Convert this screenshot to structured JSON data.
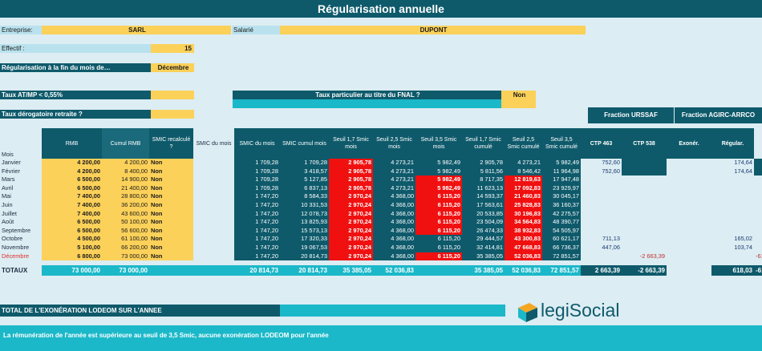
{
  "title": "Régularisation annuelle",
  "header": {
    "entreprise_label": "Entreprise:",
    "entreprise_value": "SARL",
    "salarie_label": "Salarié",
    "salarie_value": "DUPONT",
    "effectif_label": "Effectif :",
    "effectif_value": "15",
    "regul_label": "Régularisation à la fin du mois de…",
    "regul_value": "Décembre",
    "taux_atmp_label": "Taux AT/MP < 0,55%",
    "taux_fnal_label": "Taux particulier au titre du FNAL ?",
    "taux_fnal_value": "Non",
    "taux_derog_label": "Taux dérogatoire retraite ?"
  },
  "fractions": {
    "urssaf": "Fraction URSSAF",
    "agirc": "Fraction AGIRC-ARRCO"
  },
  "columns": [
    "RMB",
    "Cumul RMB",
    "SMIC recalculé ?",
    "SMIC du mois",
    "SMIC du mois",
    "SMIC cumul mois",
    "Seuil 1,7 Smic mois",
    "Seuil 2,5 Smic mois",
    "Seuil 3,5 Smic mois",
    "Seuil 1,7 Smic cumulé",
    "Seuil 2,5 Smic cumulé",
    "Seuil 3,5 Smic cumulé",
    "CTP 463",
    "CTP 538",
    "Exonér.",
    "Régular."
  ],
  "mois_label": "Mois",
  "rows": [
    {
      "m": "Janvier",
      "rmb": "4 200,00",
      "cum": "4 200,00",
      "rec": "Non",
      "sm": "1 709,28",
      "sc": "1 709,28",
      "s17": "2 905,78",
      "s25": "4 273,21",
      "s35": "5 982,49",
      "c17": "2 905,78",
      "c25": "4 273,21",
      "c35": "5 982,49",
      "ctp463": "752,60",
      "ctp538": "",
      "exo": "174,64",
      "reg": ""
    },
    {
      "m": "Février",
      "rmb": "4 200,00",
      "cum": "8 400,00",
      "rec": "Non",
      "sm": "1 709,28",
      "sc": "3 418,57",
      "s17": "2 905,78",
      "s25": "4 273,21",
      "s35": "5 982,49",
      "c17": "5 811,56",
      "c25": "8 546,42",
      "c35": "11 964,98",
      "ctp463": "752,60",
      "ctp538": "",
      "exo": "174,64",
      "reg": ""
    },
    {
      "m": "Mars",
      "rmb": "6 500,00",
      "cum": "14 900,00",
      "rec": "Non",
      "sm": "1 709,28",
      "sc": "5 127,85",
      "s17": "2 905,78",
      "s25": "4 273,21",
      "s35": "5 982,49",
      "c17": "8 717,35",
      "c25": "12 819,63",
      "c35": "17 947,48",
      "ctp463": "",
      "ctp538": "",
      "exo": "",
      "reg": ""
    },
    {
      "m": "Avril",
      "rmb": "6 500,00",
      "cum": "21 400,00",
      "rec": "Non",
      "sm": "1 709,28",
      "sc": "6 837,13",
      "s17": "2 905,78",
      "s25": "4 273,21",
      "s35": "5 982,49",
      "c17": "11 623,13",
      "c25": "17 092,83",
      "c35": "23 929,97",
      "ctp463": "",
      "ctp538": "",
      "exo": "",
      "reg": ""
    },
    {
      "m": "Mai",
      "rmb": "7 400,00",
      "cum": "28 800,00",
      "rec": "Non",
      "sm": "1 747,20",
      "sc": "8 584,33",
      "s17": "2 970,24",
      "s25": "4 368,00",
      "s35": "6 115,20",
      "c17": "14 593,37",
      "c25": "21 460,83",
      "c35": "30 045,17",
      "ctp463": "",
      "ctp538": "",
      "exo": "",
      "reg": ""
    },
    {
      "m": "Juin",
      "rmb": "7 400,00",
      "cum": "36 200,00",
      "rec": "Non",
      "sm": "1 747,20",
      "sc": "10 331,53",
      "s17": "2 970,24",
      "s25": "4 368,00",
      "s35": "6 115,20",
      "c17": "17 563,61",
      "c25": "25 828,83",
      "c35": "36 160,37",
      "ctp463": "",
      "ctp538": "",
      "exo": "",
      "reg": ""
    },
    {
      "m": "Juillet",
      "rmb": "7 400,00",
      "cum": "43 600,00",
      "rec": "Non",
      "sm": "1 747,20",
      "sc": "12 078,73",
      "s17": "2 970,24",
      "s25": "4 368,00",
      "s35": "6 115,20",
      "c17": "20 533,85",
      "c25": "30 196,83",
      "c35": "42 275,57",
      "ctp463": "",
      "ctp538": "",
      "exo": "",
      "reg": ""
    },
    {
      "m": "Août",
      "rmb": "6 500,00",
      "cum": "50 100,00",
      "rec": "Non",
      "sm": "1 747,20",
      "sc": "13 825,93",
      "s17": "2 970,24",
      "s25": "4 368,00",
      "s35": "6 115,20",
      "c17": "23 504,09",
      "c25": "34 564,83",
      "c35": "48 390,77",
      "ctp463": "",
      "ctp538": "",
      "exo": "",
      "reg": ""
    },
    {
      "m": "Septembre",
      "rmb": "6 500,00",
      "cum": "56 600,00",
      "rec": "Non",
      "sm": "1 747,20",
      "sc": "15 573,13",
      "s17": "2 970,24",
      "s25": "4 368,00",
      "s35": "6 115,20",
      "c17": "26 474,33",
      "c25": "38 932,83",
      "c35": "54 505,97",
      "ctp463": "",
      "ctp538": "",
      "exo": "",
      "reg": ""
    },
    {
      "m": "Octobre",
      "rmb": "4 500,00",
      "cum": "61 100,00",
      "rec": "Non",
      "sm": "1 747,20",
      "sc": "17 320,33",
      "s17": "2 970,24",
      "s25": "4 368,00",
      "s35": "6 115,20",
      "c17": "29 444,57",
      "c25": "43 300,83",
      "c35": "60 621,17",
      "ctp463": "711,13",
      "ctp538": "",
      "exo": "165,02",
      "reg": ""
    },
    {
      "m": "Novembre",
      "rmb": "5 100,00",
      "cum": "66 200,00",
      "rec": "Non",
      "sm": "1 747,20",
      "sc": "19 067,53",
      "s17": "2 970,24",
      "s25": "4 368,00",
      "s35": "6 115,20",
      "c17": "32 414,81",
      "c25": "47 668,83",
      "c35": "66 736,37",
      "ctp463": "447,06",
      "ctp538": "",
      "exo": "103,74",
      "reg": ""
    },
    {
      "m": "Décembre",
      "rmb": "6 800,00",
      "cum": "73 000,00",
      "rec": "Non",
      "sm": "1 747,20",
      "sc": "20 814,73",
      "s17": "2 970,24",
      "s25": "4 368,00",
      "s35": "6 115,20",
      "c17": "35 385,05",
      "c25": "52 036,83",
      "c35": "72 851,57",
      "ctp463": "",
      "ctp538": "-2 663,39",
      "exo": "",
      "reg": "-618,03"
    }
  ],
  "totals": {
    "label": "TOTAUX",
    "rmb": "73 000,00",
    "cum": "73 000,00",
    "sm": "20 814,73",
    "sc": "20 814,73",
    "s17": "35 385,05",
    "s25": "52 036,83",
    "s35": "",
    "c17": "35 385,05",
    "c25": "52 036,83",
    "c35": "72 851,57",
    "ctp463": "2 663,39",
    "ctp538": "-2 663,39",
    "exo": "618,03",
    "reg": "-618,03"
  },
  "footer": {
    "total_label": "TOTAL DE L'EXONÉRATION LODEOM SUR L'ANNEE",
    "message": "La rémunération de l'année est supérieure au seuil de 3,5 Smic, aucune exonération LODEOM pour l'année",
    "logo_text": "legiSocial"
  },
  "red_cells": {
    "s17": [
      0,
      1,
      2,
      3,
      4,
      5,
      6,
      7,
      8,
      9,
      10,
      11
    ],
    "s35": [
      2,
      3,
      4,
      5,
      6,
      7,
      8,
      11
    ],
    "c25": [
      2,
      3,
      4,
      5,
      6,
      7,
      8,
      9,
      10,
      11
    ]
  },
  "colors": {
    "dark": "#0e5a6b",
    "teal": "#1bb8c9",
    "yellow": "#fbd15a",
    "red": "#f01010"
  }
}
